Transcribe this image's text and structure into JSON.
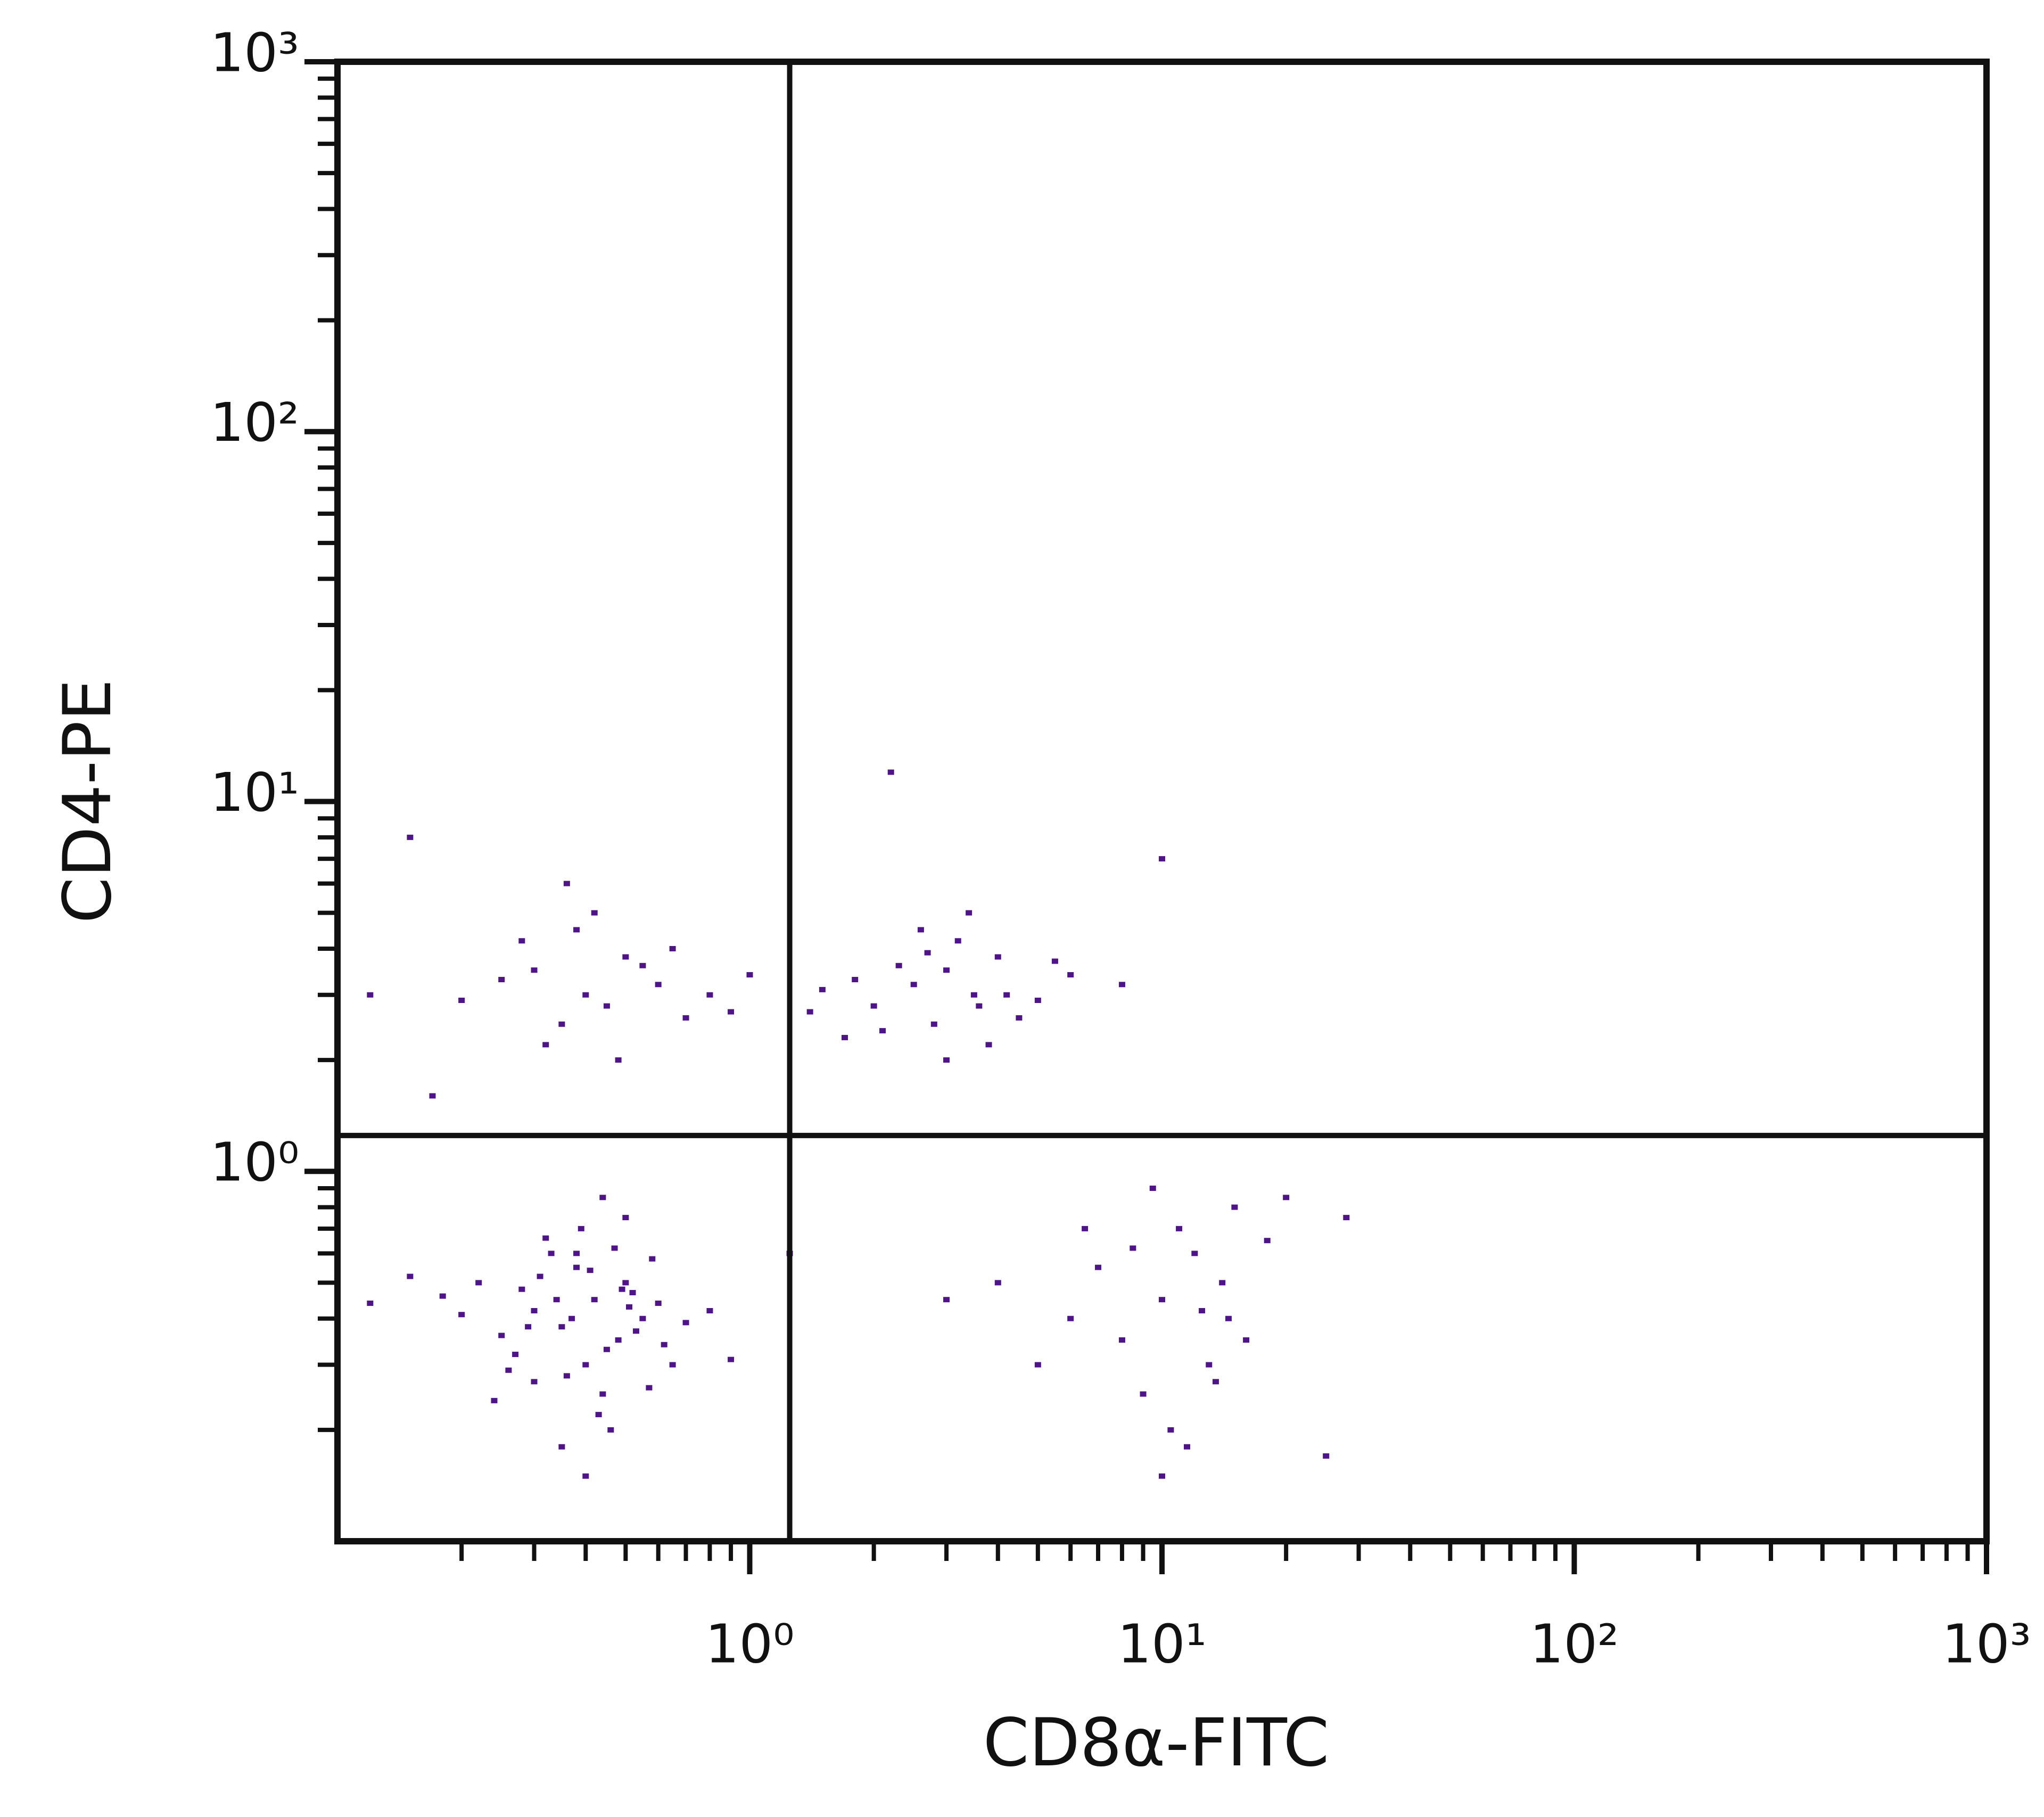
{
  "chart_data": {
    "type": "scatter",
    "x_label": "CD8α-FITC",
    "y_label": "CD4-PE",
    "log_x": true,
    "log_y": true,
    "xlim": [
      0.1,
      1000
    ],
    "ylim": [
      0.1,
      1000
    ],
    "xticks": [
      {
        "value": 1,
        "label": "10⁰"
      },
      {
        "value": 10,
        "label": "10¹"
      },
      {
        "value": 100,
        "label": "10²"
      },
      {
        "value": 1000,
        "label": "10³"
      }
    ],
    "yticks": [
      {
        "value": 1,
        "label": "10⁰"
      },
      {
        "value": 10,
        "label": "10¹"
      },
      {
        "value": 100,
        "label": "10²"
      },
      {
        "value": 1000,
        "label": "10³"
      }
    ],
    "quadrant_gates": {
      "x": 1.25,
      "y": 1.25
    },
    "series": [
      {
        "color": "#4f1488",
        "x": [
          0.42,
          0.35,
          0.5,
          0.3,
          0.45,
          0.38,
          0.55,
          0.28,
          0.4,
          0.33,
          0.6,
          0.25,
          0.47,
          0.36,
          0.52,
          0.2,
          0.44,
          0.31,
          0.7,
          0.39,
          0.48,
          0.27,
          0.58,
          0.34,
          0.43,
          0.22,
          0.65,
          0.37,
          0.5,
          0.3,
          0.41,
          0.18,
          0.46,
          0.53,
          0.32,
          0.8,
          0.26,
          0.49,
          0.35,
          0.62,
          0.15,
          0.44,
          0.57,
          0.29,
          0.4,
          0.12,
          0.38,
          0.9,
          0.24,
          0.51,
          0.3,
          0.4,
          0.35,
          0.5,
          0.28,
          0.45,
          0.6,
          0.38,
          0.7,
          0.32,
          0.55,
          0.42,
          0.8,
          0.25,
          0.48,
          0.9,
          0.36,
          0.65,
          1.0,
          0.2,
          2.5,
          3.0,
          2.0,
          3.5,
          4.0,
          2.8,
          1.8,
          3.2,
          4.5,
          2.3,
          5.0,
          1.5,
          3.8,
          2.6,
          6.0,
          3.0,
          2.1,
          4.2,
          1.4,
          3.4,
          5.5,
          2.7,
          8.0,
          1.7,
          3.6,
          10,
          12,
          8,
          14,
          9,
          11,
          6,
          13,
          15,
          7,
          10.5,
          18,
          5,
          12.5,
          9.5,
          4,
          16,
          11.5,
          3,
          8.5,
          20,
          13.5,
          6.5,
          14.5,
          10,
          2.2,
          0.15,
          25,
          10,
          0.12,
          1.25,
          28,
          0.17
        ],
        "values": [
          0.45,
          0.38,
          0.5,
          0.42,
          0.33,
          0.55,
          0.4,
          0.48,
          0.3,
          0.6,
          0.44,
          0.36,
          0.62,
          0.28,
          0.47,
          0.41,
          0.25,
          0.52,
          0.39,
          0.7,
          0.35,
          0.32,
          0.58,
          0.45,
          0.22,
          0.5,
          0.3,
          0.4,
          0.75,
          0.27,
          0.54,
          0.46,
          0.2,
          0.37,
          0.66,
          0.42,
          0.29,
          0.48,
          0.18,
          0.34,
          0.52,
          0.85,
          0.26,
          0.38,
          0.15,
          0.44,
          0.6,
          0.31,
          0.24,
          0.43,
          3.5,
          3.0,
          2.5,
          3.8,
          4.2,
          2.8,
          3.2,
          4.5,
          2.6,
          2.2,
          3.6,
          5.0,
          3.0,
          3.3,
          2.0,
          2.7,
          6.0,
          4.0,
          3.4,
          2.9,
          3.2,
          3.5,
          2.8,
          3.0,
          3.8,
          2.5,
          3.3,
          4.2,
          2.6,
          3.6,
          2.9,
          3.1,
          2.2,
          4.5,
          3.4,
          2.0,
          2.4,
          3.0,
          2.7,
          5.0,
          3.7,
          3.9,
          3.2,
          2.3,
          2.8,
          0.45,
          0.6,
          0.35,
          0.5,
          0.25,
          0.7,
          0.4,
          0.3,
          0.8,
          0.55,
          0.2,
          0.65,
          0.3,
          0.42,
          0.9,
          0.5,
          0.35,
          0.18,
          0.45,
          0.62,
          0.85,
          0.27,
          0.7,
          0.4,
          0.15,
          12,
          8,
          0.17,
          7,
          3,
          0.6,
          0.75,
          1.6
        ]
      }
    ]
  }
}
